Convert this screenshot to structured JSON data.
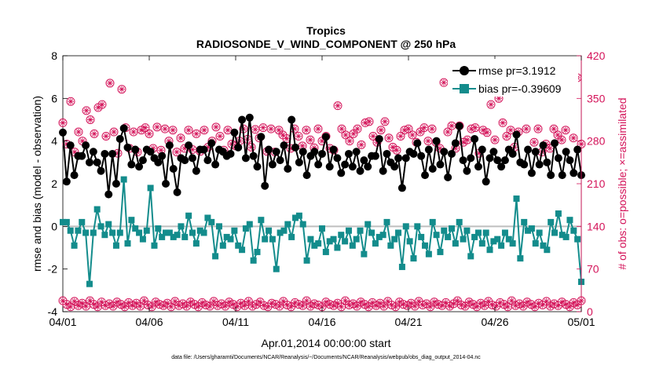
{
  "chart_data": {
    "type": "line",
    "title": "Tropics",
    "subtitle": "RADIOSONDE_V_WIND_COMPONENT @ 250 hPa",
    "xlabel": "Apr.01,2014 00:00:00 start",
    "ylabel": "rmse and bias (model - observation)",
    "y2label": "# of obs: o=possible; ×=assimilated",
    "footnote": "data file: /Users/gharamti/Documents/NCAR/Reanalysis/~/Documents/NCAR/Reanalysis/webpub/obs_diag_output_2014-04.nc",
    "xlim": [
      0,
      30
    ],
    "ylim": [
      -4,
      8
    ],
    "y2lim": [
      0,
      420
    ],
    "x_ticks": [
      0,
      5,
      10,
      15,
      20,
      25,
      30
    ],
    "x_tick_labels": [
      "04/01",
      "04/06",
      "04/11",
      "04/16",
      "04/21",
      "04/26",
      "05/01"
    ],
    "y_ticks": [
      -4,
      -2,
      0,
      2,
      4,
      6,
      8
    ],
    "y_tick_labels": [
      "-4",
      "-2",
      "0",
      "2",
      "4",
      "6",
      "8"
    ],
    "y2_ticks": [
      0,
      70,
      140,
      210,
      280,
      350,
      420
    ],
    "y2_tick_labels": [
      "0",
      "70",
      "140",
      "210",
      "280",
      "350",
      "420"
    ],
    "zero_line": 0,
    "colors": {
      "rmse": "#000000",
      "bias": "#138c8c",
      "obs": "#d4145a",
      "axis": "#000000",
      "zero": "#bfbfbf"
    },
    "series": [
      {
        "name": "rmse",
        "legend": "rmse pr=3.1912",
        "marker": "circle",
        "values": [
          4.4,
          2.1,
          3.8,
          2.4,
          3.3,
          3.3,
          3.8,
          3.0,
          3.5,
          3.0,
          2.6,
          3.4,
          1.5,
          3.4,
          2.0,
          4.1,
          4.6,
          3.7,
          2.9,
          3.6,
          2.8,
          3.1,
          3.6,
          3.5,
          3.2,
          3.0,
          3.3,
          2.0,
          3.8,
          2.7,
          1.6,
          3.2,
          3.1,
          3.8,
          3.2,
          2.6,
          3.6,
          3.6,
          3.1,
          3.9,
          2.9,
          3.6,
          3.5,
          3.3,
          3.4,
          4.4,
          3.7,
          5.0,
          3.2,
          5.1,
          3.3,
          2.8,
          4.2,
          1.9,
          3.6,
          2.9,
          3.5,
          3.1,
          3.8,
          2.7,
          5.0,
          3.7,
          3.0,
          3.5,
          2.4,
          3.3,
          3.5,
          2.9,
          3.4,
          4.2,
          2.8,
          3.6,
          3.2,
          2.5,
          2.9,
          3.4,
          2.8,
          3.5,
          2.6,
          3.1,
          2.8,
          3.3,
          3.3,
          4.1,
          2.6,
          3.4,
          3.0,
          2.8,
          3.2,
          1.8,
          3.2,
          3.5,
          3.4,
          3.9,
          3.3,
          2.4,
          3.6,
          2.7,
          4.0,
          2.9,
          3.5,
          2.3,
          3.4,
          3.9,
          4.7,
          3.1,
          2.6,
          3.2,
          4.1,
          2.8,
          3.6,
          2.1,
          3.2,
          3.5,
          3.1,
          2.8,
          3.1,
          3.6,
          3.4,
          4.3,
          3.0,
          2.9,
          3.6,
          2.5,
          3.5,
          2.9,
          3.8,
          3.0,
          2.4,
          3.9,
          3.2,
          2.4,
          3.5,
          3.1,
          2.5,
          3.6,
          2.4
        ]
      },
      {
        "name": "bias",
        "legend": "bias pr=-0.39609",
        "marker": "square",
        "values": [
          0.2,
          0.2,
          -0.2,
          -0.9,
          -0.2,
          0.2,
          -0.3,
          -2.7,
          -0.3,
          0.8,
          0.0,
          -0.4,
          0.1,
          -0.3,
          -0.9,
          -0.3,
          2.2,
          -0.8,
          0.3,
          -0.1,
          -0.3,
          -0.6,
          -0.2,
          1.8,
          -0.9,
          -0.1,
          -0.5,
          -0.3,
          -0.3,
          -0.5,
          -0.4,
          0.0,
          -0.5,
          0.5,
          -0.3,
          -0.8,
          -0.2,
          -0.3,
          0.4,
          0.2,
          -1.4,
          0.0,
          -0.9,
          -0.5,
          -0.6,
          -0.2,
          -0.9,
          -1.1,
          -0.1,
          0.1,
          -1.6,
          -1.2,
          0.3,
          -0.6,
          -0.2,
          -0.6,
          -2.0,
          -0.3,
          -0.2,
          0.1,
          -0.5,
          0.4,
          0.5,
          0.1,
          -1.6,
          -0.6,
          -0.9,
          -0.8,
          -0.1,
          -1.2,
          -0.7,
          -0.6,
          -1.0,
          -0.4,
          -0.7,
          -0.2,
          -0.9,
          -0.6,
          -0.2,
          -1.3,
          0.1,
          -0.3,
          -0.8,
          -0.5,
          -0.4,
          0.2,
          -0.9,
          -0.6,
          -0.3,
          -1.9,
          0.0,
          -0.7,
          -1.5,
          0.0,
          -0.5,
          -0.9,
          -1.3,
          0.2,
          -0.4,
          -1.2,
          -0.2,
          -0.5,
          -0.1,
          -0.8,
          0.2,
          -0.6,
          -0.2,
          -1.4,
          -0.5,
          -0.3,
          -0.8,
          -0.3,
          -1.1,
          -0.7,
          -0.6,
          -0.9,
          -0.3,
          -0.6,
          -0.8,
          1.3,
          -1.5,
          0.2,
          -0.2,
          -0.1,
          -0.8,
          -0.3,
          -0.9,
          -1.1,
          0.2,
          -0.3,
          0.6,
          -0.4,
          -0.5,
          0.3,
          -0.2,
          -0.6,
          -2.6
        ]
      },
      {
        "name": "possible_obs",
        "axis": "right",
        "marker": "circle-open",
        "values": [
          310,
          275,
          345,
          262,
          295,
          280,
          330,
          315,
          292,
          335,
          340,
          288,
          375,
          295,
          260,
          365,
          302,
          268,
          295,
          262,
          298,
          302,
          292,
          268,
          303,
          265,
          300,
          280,
          298,
          262,
          285,
          268,
          298,
          266,
          292,
          263,
          298,
          270,
          280,
          303,
          288,
          265,
          298,
          275,
          272,
          280,
          300,
          283,
          270,
          299,
          285,
          302,
          263,
          300,
          262,
          298,
          290,
          284,
          268,
          300,
          288,
          272,
          298,
          282,
          269,
          300,
          280,
          288,
          268,
          265,
          338,
          300,
          290,
          280,
          292,
          300,
          274,
          310,
          312,
          288,
          278,
          298,
          312,
          285,
          270,
          265,
          288,
          298,
          300,
          290,
          278,
          295,
          302,
          280,
          300,
          278,
          268,
          376,
          295,
          305,
          268,
          305,
          278,
          282,
          300,
          302,
          260,
          298,
          294,
          340,
          282,
          350,
          310,
          288,
          298,
          270,
          295,
          362,
          300,
          386,
          278,
          300,
          262,
          275,
          268,
          300,
          290,
          282,
          298,
          392,
          285,
          384,
          275
        ]
      },
      {
        "name": "assimilated_obs",
        "axis": "right",
        "marker": "asterisk",
        "values": [
          310,
          275,
          345,
          262,
          295,
          280,
          330,
          315,
          292,
          335,
          340,
          288,
          375,
          295,
          260,
          365,
          302,
          268,
          295,
          262,
          298,
          302,
          292,
          268,
          303,
          265,
          300,
          280,
          298,
          262,
          285,
          268,
          298,
          266,
          292,
          263,
          298,
          270,
          280,
          303,
          288,
          265,
          298,
          275,
          272,
          280,
          300,
          283,
          270,
          299,
          285,
          302,
          263,
          300,
          262,
          298,
          290,
          284,
          268,
          300,
          288,
          272,
          298,
          282,
          269,
          300,
          280,
          288,
          268,
          265,
          338,
          300,
          290,
          280,
          292,
          300,
          274,
          310,
          312,
          288,
          278,
          298,
          312,
          285,
          270,
          265,
          288,
          298,
          300,
          290,
          278,
          295,
          302,
          280,
          300,
          278,
          268,
          376,
          295,
          305,
          268,
          305,
          278,
          282,
          300,
          302,
          260,
          298,
          294,
          340,
          282,
          350,
          310,
          288,
          298,
          270,
          295,
          362,
          300,
          386,
          278,
          300,
          262,
          275,
          268,
          300,
          290,
          282,
          298,
          392,
          285,
          384,
          275
        ]
      },
      {
        "name": "possible_obs_low",
        "axis": "right",
        "marker": "circle-open",
        "values": [
          18,
          12,
          8,
          17,
          10,
          14,
          9,
          18,
          12,
          8,
          16,
          10,
          13,
          9,
          16,
          12,
          8,
          15,
          10,
          14,
          9,
          18,
          11,
          8,
          16,
          12,
          10,
          14,
          8,
          17,
          10,
          13,
          9,
          16,
          12,
          8,
          15,
          11,
          9,
          17,
          10,
          13,
          9,
          16,
          12,
          8,
          14,
          10,
          17,
          9,
          12,
          16,
          10,
          8,
          14,
          12,
          9,
          17,
          11,
          8,
          15,
          12,
          10,
          18,
          9,
          13,
          11,
          8,
          16,
          12,
          10,
          14,
          8,
          18,
          11,
          13,
          9,
          16,
          12,
          8,
          15,
          10,
          14,
          9,
          17,
          11,
          8,
          16,
          12,
          10,
          14,
          9,
          17,
          11,
          13,
          8,
          16,
          12,
          10,
          15,
          9,
          13,
          18,
          11,
          9,
          16,
          12,
          8,
          14,
          10,
          17,
          11,
          9,
          15,
          12,
          8,
          18,
          10,
          13,
          9,
          16,
          12,
          8,
          14,
          11,
          17,
          9,
          13,
          10,
          16,
          12,
          8,
          15,
          11,
          18
        ]
      },
      {
        "name": "assimilated_obs_low",
        "axis": "right",
        "marker": "asterisk",
        "values": [
          18,
          12,
          8,
          17,
          10,
          14,
          9,
          18,
          12,
          8,
          16,
          10,
          13,
          9,
          16,
          12,
          8,
          15,
          10,
          14,
          9,
          18,
          11,
          8,
          16,
          12,
          10,
          14,
          8,
          17,
          10,
          13,
          9,
          16,
          12,
          8,
          15,
          11,
          9,
          17,
          10,
          13,
          9,
          16,
          12,
          8,
          14,
          10,
          17,
          9,
          12,
          16,
          10,
          8,
          14,
          12,
          9,
          17,
          11,
          8,
          15,
          12,
          10,
          18,
          9,
          13,
          11,
          8,
          16,
          12,
          10,
          14,
          8,
          18,
          11,
          13,
          9,
          16,
          12,
          8,
          15,
          10,
          14,
          9,
          17,
          11,
          8,
          16,
          12,
          10,
          14,
          9,
          17,
          11,
          13,
          8,
          16,
          12,
          10,
          15,
          9,
          13,
          18,
          11,
          9,
          16,
          12,
          8,
          14,
          10,
          17,
          11,
          9,
          15,
          12,
          8,
          18,
          10,
          13,
          9,
          16,
          12,
          8,
          14,
          11,
          17,
          9,
          13,
          10,
          16,
          12,
          8,
          15,
          11,
          18
        ]
      }
    ]
  }
}
